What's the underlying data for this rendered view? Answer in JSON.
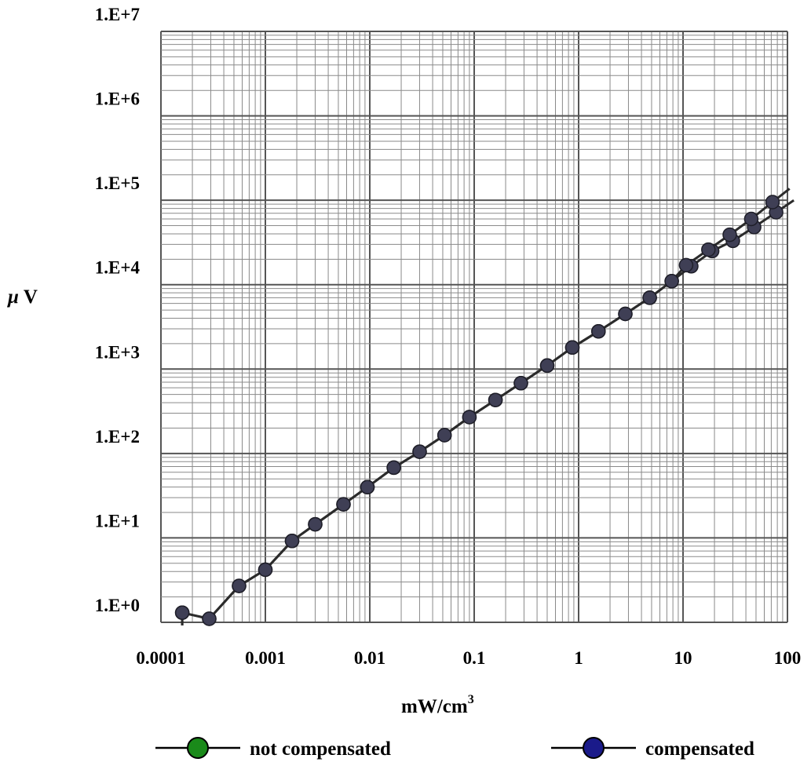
{
  "chart_data": {
    "type": "line",
    "x_scale": "log",
    "y_scale": "log",
    "xlim": [
      0.0001,
      100
    ],
    "ylim": [
      1,
      10000000
    ],
    "grid": true,
    "legend_position": "bottom",
    "x_ticks": [
      "0.0001",
      "0.001",
      "0.01",
      "0.1",
      "1",
      "10",
      "100"
    ],
    "y_ticks": [
      "1.E+0",
      "1.E+1",
      "1.E+2",
      "1.E+3",
      "1.E+4",
      "1.E+5",
      "1.E+6",
      "1.E+7"
    ],
    "xlabel": "mW/cm",
    "xlabel_superscript": "3",
    "ylabel_symbol": "μ",
    "ylabel": "V",
    "series": [
      {
        "name": "not compensated",
        "color": "#1a8a1a",
        "x": [
          0.00016,
          0.00029,
          0.00056,
          0.001,
          0.0018,
          0.003,
          0.0056,
          0.0095,
          0.017,
          0.03,
          0.052,
          0.09,
          0.16,
          0.28,
          0.5,
          0.87,
          1.55,
          2.8,
          4.8,
          7.8,
          12,
          19,
          30,
          48,
          78
        ],
        "y": [
          1.3,
          1.1,
          2.7,
          4.2,
          9.2,
          14.5,
          25,
          40,
          68,
          105,
          165,
          270,
          430,
          680,
          1100,
          1800,
          2800,
          4500,
          7000,
          11000,
          16500,
          25000,
          33000,
          48000,
          72000
        ]
      },
      {
        "name": "compensated",
        "color": "#1a1a8a",
        "x": [
          0.00016,
          0.00029,
          0.00056,
          0.001,
          0.0018,
          0.003,
          0.0056,
          0.0095,
          0.017,
          0.03,
          0.052,
          0.09,
          0.16,
          0.28,
          0.5,
          0.87,
          1.55,
          2.8,
          4.8,
          7.8,
          10.7,
          17.5,
          28,
          45,
          72
        ],
        "y": [
          1.3,
          1.1,
          2.7,
          4.2,
          9.2,
          14.5,
          25,
          40,
          68,
          105,
          165,
          270,
          430,
          680,
          1100,
          1800,
          2800,
          4500,
          7000,
          11000,
          17000,
          26000,
          39000,
          60000,
          95000
        ]
      }
    ]
  },
  "legend": [
    {
      "label": "not compensated",
      "color": "#1a8a1a"
    },
    {
      "label": "compensated",
      "color": "#1a1a8a"
    }
  ]
}
